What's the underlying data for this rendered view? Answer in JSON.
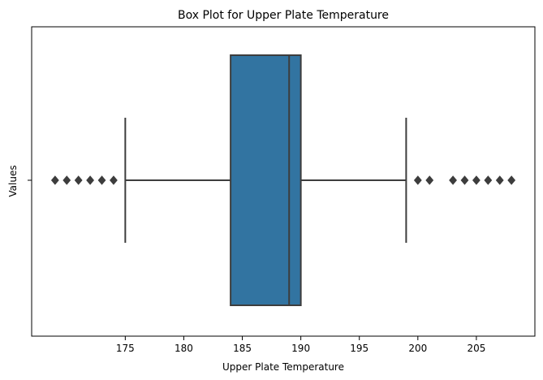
{
  "chart_data": {
    "type": "box",
    "title": "Box Plot for Upper Plate Temperature",
    "xlabel": "Upper Plate Temperature",
    "ylabel": "Values",
    "xlim": [
      167.0,
      210.0
    ],
    "xticks": [
      175,
      180,
      185,
      190,
      195,
      200,
      205
    ],
    "grid": false,
    "colors": {
      "box": "#3274a1",
      "line": "#3d3d3d"
    },
    "box": {
      "whisker_low": 175,
      "q1": 184,
      "median": 189,
      "q3": 190,
      "whisker_high": 199
    },
    "outliers": [
      169,
      170,
      171,
      172,
      173,
      174,
      200,
      201,
      203,
      204,
      205,
      206,
      207,
      208
    ]
  }
}
